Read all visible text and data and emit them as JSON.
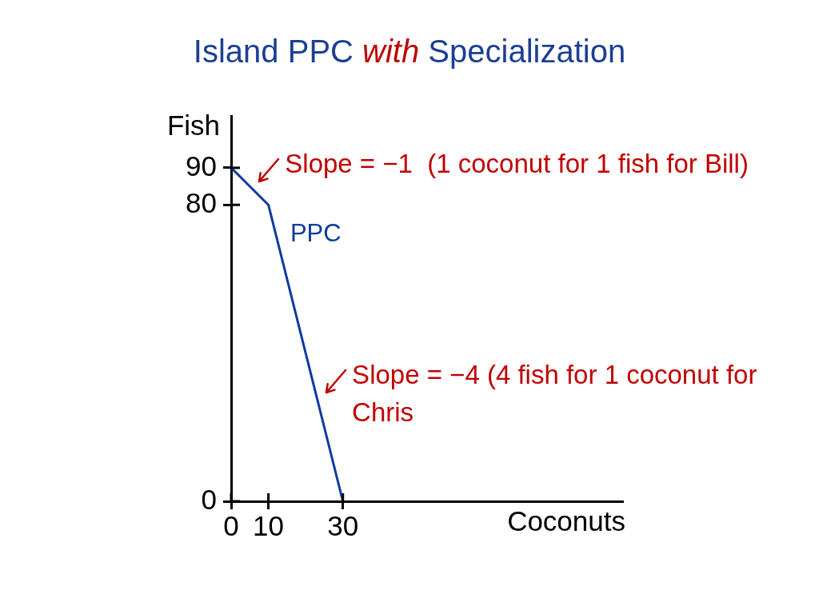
{
  "chart_data": {
    "type": "line",
    "title": "Island PPC with Specialization",
    "xlabel": "Coconuts",
    "ylabel": "Fish",
    "x": [
      0,
      10,
      30
    ],
    "series": [
      {
        "name": "PPC",
        "color": "#0d3c9e",
        "values": [
          90,
          80,
          0
        ]
      }
    ],
    "xlim": [
      0,
      105
    ],
    "ylim": [
      0,
      104
    ],
    "xticks": [
      0,
      10,
      30
    ],
    "yticks": [
      0,
      80,
      90
    ],
    "marker": "none",
    "annotations": [
      {
        "text": "Slope = −1  (1 coconut for 1 fish for Bill)",
        "x": 5,
        "y": 85
      },
      {
        "text": "Slope = −4 (4 fish for 1 coconut for Chris",
        "x": 23,
        "y": 28
      }
    ]
  }
}
